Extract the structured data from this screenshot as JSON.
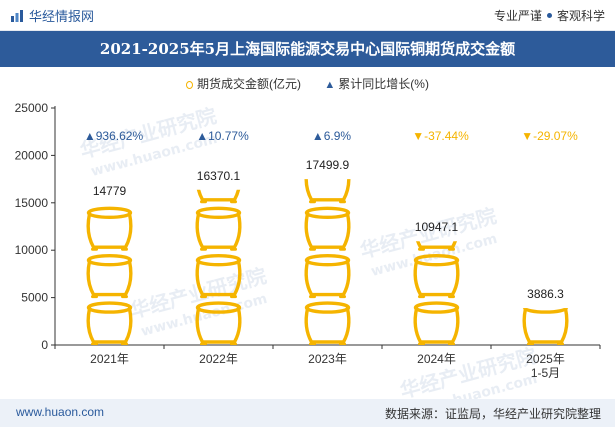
{
  "header": {
    "brand": "华经情报网",
    "slogan_left": "专业严谨",
    "slogan_right": "客观科学"
  },
  "title": "2021-2025年5月上海国际能源交易中心国际铜期货成交金额",
  "legend": {
    "amount": "期货成交金额(亿元)",
    "growth": "累计同比增长(%)"
  },
  "watermark": {
    "cn": "华经产业研究院",
    "url": "www.huaon.com"
  },
  "footer": {
    "url": "www.huaon.com",
    "source": "数据来源：证监局，华经产业研究院整理"
  },
  "colors": {
    "coin": "#f5b400",
    "up": "#2d5b9a",
    "down": "#f5b400",
    "title_bg": "#2d5b9a"
  },
  "chart_data": {
    "type": "bar",
    "icon": "coin-pot-stack",
    "categories": [
      "2021年",
      "2022年",
      "2023年",
      "2024年",
      "2025年\n1-5月"
    ],
    "series": [
      {
        "name": "期货成交金额(亿元)",
        "values": [
          14779,
          16370.1,
          17499.9,
          10947.1,
          3886.3
        ]
      }
    ],
    "value_labels": [
      "14779",
      "16370.1",
      "17499.9",
      "10947.1",
      "3886.3"
    ],
    "growth": {
      "name": "累计同比增长(%)",
      "values": [
        936.62,
        10.77,
        6.9,
        -37.44,
        -29.07
      ],
      "labels": [
        "936.62%",
        "10.77%",
        "6.9%",
        "-37.44%",
        "-29.07%"
      ]
    },
    "ylim": [
      0,
      25000
    ],
    "yticks": [
      0,
      5000,
      10000,
      15000,
      20000,
      25000
    ],
    "xlabel": "",
    "ylabel": "",
    "grid": false,
    "legend_position": "top-center"
  }
}
